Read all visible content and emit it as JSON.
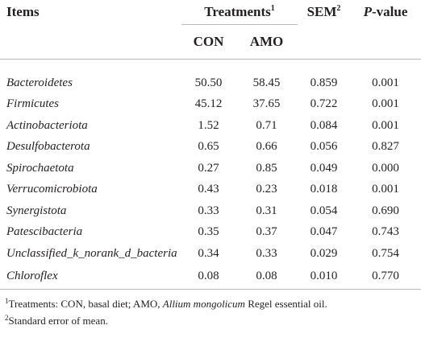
{
  "header": {
    "items": "Items",
    "treatments": "Treatments",
    "treatments_note": "1",
    "con": "CON",
    "amo": "AMO",
    "sem": "SEM",
    "sem_note": "2",
    "p_italic": "P",
    "p_rest": "-value"
  },
  "table": {
    "rows": [
      [
        "Bacteroidetes",
        "50.50",
        "58.45",
        "0.859",
        "0.001"
      ],
      [
        "Firmicutes",
        "45.12",
        "37.65",
        "0.722",
        "0.001"
      ],
      [
        "Actinobacteriota",
        "1.52",
        "0.71",
        "0.084",
        "0.001"
      ],
      [
        "Desulfobacterota",
        "0.65",
        "0.66",
        "0.056",
        "0.827"
      ],
      [
        "Spirochaetota",
        "0.27",
        "0.85",
        "0.049",
        "0.000"
      ],
      [
        "Verrucomicrobiota",
        "0.43",
        "0.23",
        "0.018",
        "0.001"
      ],
      [
        "Synergistota",
        "0.33",
        "0.31",
        "0.054",
        "0.690"
      ],
      [
        "Patescibacteria",
        "0.35",
        "0.37",
        "0.047",
        "0.743"
      ],
      [
        "Unclassified_k_norank_d_bacteria",
        "0.34",
        "0.33",
        "0.029",
        "0.754"
      ],
      [
        "Chloroflex",
        "0.08",
        "0.08",
        "0.010",
        "0.770"
      ]
    ]
  },
  "footnotes": [
    {
      "mark": "1",
      "text": "Treatments: CON, basal diet; AMO, ",
      "italic": "Allium mongolicum",
      "rest": " Regel essential oil."
    },
    {
      "mark": "2",
      "text": "Standard error of mean."
    }
  ]
}
